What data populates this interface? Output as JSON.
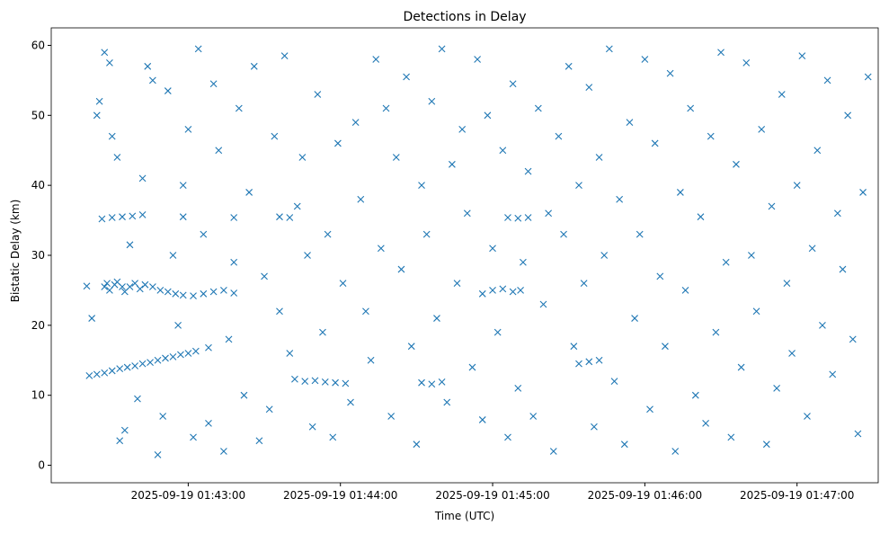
{
  "chart_data": {
    "type": "scatter",
    "title": "Detections in Delay",
    "xlabel": "Time (UTC)",
    "ylabel": "Bistatic Delay (km)",
    "x_unit": "seconds after 2025-09-19 01:42:00",
    "xlim": [
      6,
      332
    ],
    "ylim": [
      -2.5,
      62.5
    ],
    "grid": false,
    "marker": "x",
    "color": "#1f77b4",
    "xticks": [
      {
        "value": 60,
        "label": "2025-09-19 01:43:00"
      },
      {
        "value": 120,
        "label": "2025-09-19 01:44:00"
      },
      {
        "value": 180,
        "label": "2025-09-19 01:45:00"
      },
      {
        "value": 240,
        "label": "2025-09-19 01:46:00"
      },
      {
        "value": 300,
        "label": "2025-09-19 01:47:00"
      }
    ],
    "yticks": [
      0,
      10,
      20,
      30,
      40,
      50,
      60
    ],
    "points": [
      [
        21,
        12.8
      ],
      [
        24,
        13
      ],
      [
        27,
        13.2
      ],
      [
        30,
        13.5
      ],
      [
        33,
        13.8
      ],
      [
        36,
        14
      ],
      [
        39,
        14.2
      ],
      [
        42,
        14.5
      ],
      [
        45,
        14.7
      ],
      [
        48,
        15
      ],
      [
        51,
        15.3
      ],
      [
        54,
        15.5
      ],
      [
        57,
        15.8
      ],
      [
        60,
        16
      ],
      [
        63,
        16.3
      ],
      [
        68,
        16.8
      ],
      [
        27,
        25.5
      ],
      [
        28,
        26
      ],
      [
        29,
        25
      ],
      [
        31,
        25.8
      ],
      [
        32,
        26.2
      ],
      [
        34,
        25.5
      ],
      [
        35,
        24.8
      ],
      [
        37,
        25.5
      ],
      [
        39,
        26
      ],
      [
        41,
        25.2
      ],
      [
        43,
        25.8
      ],
      [
        46,
        25.5
      ],
      [
        49,
        25
      ],
      [
        52,
        24.8
      ],
      [
        55,
        24.5
      ],
      [
        58,
        24.3
      ],
      [
        62,
        24.2
      ],
      [
        66,
        24.5
      ],
      [
        70,
        24.8
      ],
      [
        74,
        25
      ],
      [
        78,
        24.6
      ],
      [
        26,
        35.2
      ],
      [
        30,
        35.4
      ],
      [
        34,
        35.5
      ],
      [
        38,
        35.6
      ],
      [
        42,
        35.8
      ],
      [
        58,
        35.5
      ],
      [
        78,
        35.4
      ],
      [
        96,
        35.5
      ],
      [
        100,
        35.4
      ],
      [
        102,
        12.3
      ],
      [
        106,
        12
      ],
      [
        110,
        12.1
      ],
      [
        114,
        11.9
      ],
      [
        118,
        11.8
      ],
      [
        122,
        11.7
      ],
      [
        152,
        11.8
      ],
      [
        156,
        11.6
      ],
      [
        160,
        11.9
      ],
      [
        176,
        24.5
      ],
      [
        180,
        25
      ],
      [
        184,
        25.2
      ],
      [
        188,
        24.8
      ],
      [
        191,
        25
      ],
      [
        186,
        35.4
      ],
      [
        190,
        35.3
      ],
      [
        194,
        35.4
      ],
      [
        214,
        14.5
      ],
      [
        218,
        14.8
      ],
      [
        222,
        15
      ],
      [
        20,
        25.6
      ],
      [
        22,
        21
      ],
      [
        24,
        50
      ],
      [
        25,
        52
      ],
      [
        27,
        59
      ],
      [
        29,
        57.5
      ],
      [
        30,
        47
      ],
      [
        32,
        44
      ],
      [
        33,
        3.5
      ],
      [
        35,
        5
      ],
      [
        37,
        31.5
      ],
      [
        40,
        9.5
      ],
      [
        42,
        41
      ],
      [
        44,
        57
      ],
      [
        46,
        55
      ],
      [
        48,
        1.5
      ],
      [
        50,
        7
      ],
      [
        52,
        53.5
      ],
      [
        54,
        30
      ],
      [
        56,
        20
      ],
      [
        58,
        40
      ],
      [
        60,
        48
      ],
      [
        62,
        4
      ],
      [
        64,
        59.5
      ],
      [
        66,
        33
      ],
      [
        68,
        6
      ],
      [
        70,
        54.5
      ],
      [
        72,
        45
      ],
      [
        74,
        2
      ],
      [
        76,
        18
      ],
      [
        78,
        29
      ],
      [
        80,
        51
      ],
      [
        82,
        10
      ],
      [
        84,
        39
      ],
      [
        86,
        57
      ],
      [
        88,
        3.5
      ],
      [
        90,
        27
      ],
      [
        92,
        8
      ],
      [
        94,
        47
      ],
      [
        96,
        22
      ],
      [
        98,
        58.5
      ],
      [
        100,
        16
      ],
      [
        103,
        37
      ],
      [
        105,
        44
      ],
      [
        107,
        30
      ],
      [
        109,
        5.5
      ],
      [
        111,
        53
      ],
      [
        113,
        19
      ],
      [
        115,
        33
      ],
      [
        117,
        4
      ],
      [
        119,
        46
      ],
      [
        121,
        26
      ],
      [
        124,
        9
      ],
      [
        126,
        49
      ],
      [
        128,
        38
      ],
      [
        130,
        22
      ],
      [
        132,
        15
      ],
      [
        134,
        58
      ],
      [
        136,
        31
      ],
      [
        138,
        51
      ],
      [
        140,
        7
      ],
      [
        142,
        44
      ],
      [
        144,
        28
      ],
      [
        146,
        55.5
      ],
      [
        148,
        17
      ],
      [
        150,
        3
      ],
      [
        152,
        40
      ],
      [
        154,
        33
      ],
      [
        156,
        52
      ],
      [
        158,
        21
      ],
      [
        160,
        59.5
      ],
      [
        162,
        9
      ],
      [
        164,
        43
      ],
      [
        166,
        26
      ],
      [
        168,
        48
      ],
      [
        170,
        36
      ],
      [
        172,
        14
      ],
      [
        174,
        58
      ],
      [
        176,
        6.5
      ],
      [
        178,
        50
      ],
      [
        180,
        31
      ],
      [
        182,
        19
      ],
      [
        184,
        45
      ],
      [
        186,
        4
      ],
      [
        188,
        54.5
      ],
      [
        190,
        11
      ],
      [
        192,
        29
      ],
      [
        194,
        42
      ],
      [
        196,
        7
      ],
      [
        198,
        51
      ],
      [
        200,
        23
      ],
      [
        202,
        36
      ],
      [
        204,
        2
      ],
      [
        206,
        47
      ],
      [
        208,
        33
      ],
      [
        210,
        57
      ],
      [
        212,
        17
      ],
      [
        214,
        40
      ],
      [
        216,
        26
      ],
      [
        218,
        54
      ],
      [
        220,
        5.5
      ],
      [
        222,
        44
      ],
      [
        224,
        30
      ],
      [
        226,
        59.5
      ],
      [
        228,
        12
      ],
      [
        230,
        38
      ],
      [
        232,
        3
      ],
      [
        234,
        49
      ],
      [
        236,
        21
      ],
      [
        238,
        33
      ],
      [
        240,
        58
      ],
      [
        242,
        8
      ],
      [
        244,
        46
      ],
      [
        246,
        27
      ],
      [
        248,
        17
      ],
      [
        250,
        56
      ],
      [
        252,
        2
      ],
      [
        254,
        39
      ],
      [
        256,
        25
      ],
      [
        258,
        51
      ],
      [
        260,
        10
      ],
      [
        262,
        35.5
      ],
      [
        264,
        6
      ],
      [
        266,
        47
      ],
      [
        268,
        19
      ],
      [
        270,
        59
      ],
      [
        272,
        29
      ],
      [
        274,
        4
      ],
      [
        276,
        43
      ],
      [
        278,
        14
      ],
      [
        280,
        57.5
      ],
      [
        282,
        30
      ],
      [
        284,
        22
      ],
      [
        286,
        48
      ],
      [
        288,
        3
      ],
      [
        290,
        37
      ],
      [
        292,
        11
      ],
      [
        294,
        53
      ],
      [
        296,
        26
      ],
      [
        298,
        16
      ],
      [
        300,
        40
      ],
      [
        302,
        58.5
      ],
      [
        304,
        7
      ],
      [
        306,
        31
      ],
      [
        308,
        45
      ],
      [
        310,
        20
      ],
      [
        312,
        55
      ],
      [
        314,
        13
      ],
      [
        316,
        36
      ],
      [
        318,
        28
      ],
      [
        320,
        50
      ],
      [
        322,
        18
      ],
      [
        324,
        4.5
      ],
      [
        326,
        39
      ],
      [
        328,
        55.5
      ]
    ]
  }
}
